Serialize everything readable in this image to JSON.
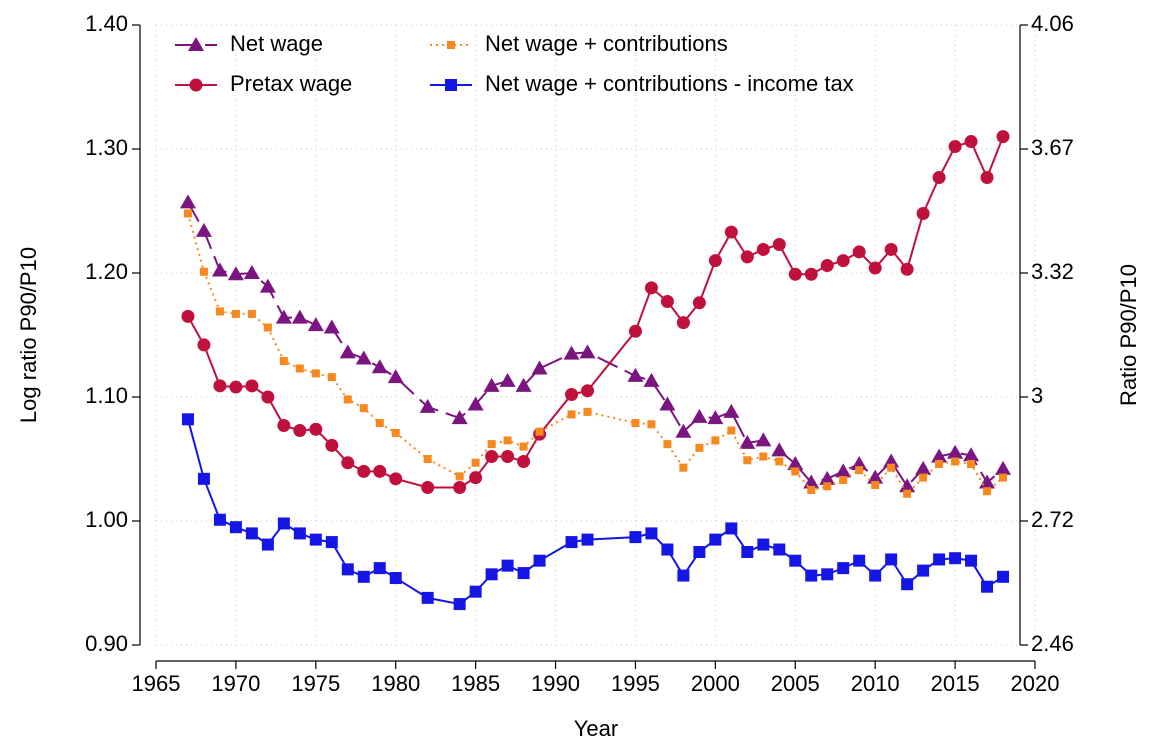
{
  "chart_data": {
    "type": "line",
    "x_label": "Year",
    "y_label": "Log ratio P90/P10",
    "y2_label": "Ratio P90/P10",
    "x": [
      1967,
      1968,
      1969,
      1970,
      1971,
      1972,
      1973,
      1974,
      1975,
      1976,
      1977,
      1978,
      1979,
      1980,
      1982,
      1984,
      1985,
      1986,
      1987,
      1988,
      1989,
      1991,
      1992,
      1995,
      1996,
      1997,
      1998,
      1999,
      2000,
      2001,
      2002,
      2003,
      2004,
      2005,
      2006,
      2007,
      2008,
      2009,
      2010,
      2011,
      2012,
      2013,
      2014,
      2015,
      2016,
      2017,
      2018
    ],
    "series": [
      {
        "name": "Net wage",
        "color": "#7b1680",
        "line_style": "dashed",
        "marker": "triangle",
        "values": [
          1.257,
          1.234,
          1.202,
          1.199,
          1.2,
          1.189,
          1.164,
          1.164,
          1.158,
          1.156,
          1.136,
          1.131,
          1.124,
          1.116,
          1.092,
          1.083,
          1.094,
          1.109,
          1.113,
          1.109,
          1.123,
          1.135,
          1.136,
          1.117,
          1.113,
          1.094,
          1.072,
          1.084,
          1.083,
          1.088,
          1.063,
          1.065,
          1.057,
          1.046,
          1.031,
          1.034,
          1.04,
          1.046,
          1.035,
          1.048,
          1.028,
          1.042,
          1.052,
          1.055,
          1.053,
          1.031,
          1.042
        ]
      },
      {
        "name": "Pretax wage",
        "color": "#c0103c",
        "line_style": "solid",
        "marker": "circle",
        "values": [
          1.165,
          1.142,
          1.109,
          1.108,
          1.109,
          1.1,
          1.077,
          1.073,
          1.074,
          1.061,
          1.047,
          1.04,
          1.04,
          1.034,
          1.027,
          1.027,
          1.035,
          1.052,
          1.052,
          1.048,
          1.07,
          1.102,
          1.105,
          1.153,
          1.188,
          1.177,
          1.16,
          1.176,
          1.21,
          1.233,
          1.213,
          1.219,
          1.223,
          1.199,
          1.199,
          1.206,
          1.21,
          1.217,
          1.204,
          1.219,
          1.203,
          1.248,
          1.277,
          1.302,
          1.306,
          1.277,
          1.31
        ]
      },
      {
        "name": "Net wage + contributions",
        "color": "#f5891f",
        "line_style": "dotted",
        "marker": "small-square",
        "values": [
          1.248,
          1.201,
          1.169,
          1.167,
          1.167,
          1.156,
          1.129,
          1.123,
          1.119,
          1.116,
          1.098,
          1.091,
          1.079,
          1.071,
          1.05,
          1.036,
          1.047,
          1.062,
          1.065,
          1.06,
          1.072,
          1.086,
          1.088,
          1.079,
          1.078,
          1.062,
          1.043,
          1.059,
          1.065,
          1.073,
          1.049,
          1.052,
          1.048,
          1.04,
          1.025,
          1.028,
          1.033,
          1.041,
          1.029,
          1.043,
          1.022,
          1.035,
          1.046,
          1.048,
          1.046,
          1.024,
          1.035
        ]
      },
      {
        "name": "Net wage + contributions - income tax",
        "color": "#1515e6",
        "line_style": "solid",
        "marker": "square",
        "values": [
          1.082,
          1.034,
          1.001,
          0.995,
          0.99,
          0.981,
          0.998,
          0.99,
          0.985,
          0.983,
          0.961,
          0.955,
          0.962,
          0.954,
          0.938,
          0.933,
          0.943,
          0.957,
          0.964,
          0.958,
          0.968,
          0.983,
          0.985,
          0.987,
          0.99,
          0.977,
          0.956,
          0.975,
          0.985,
          0.994,
          0.975,
          0.981,
          0.977,
          0.968,
          0.956,
          0.957,
          0.962,
          0.968,
          0.956,
          0.969,
          0.949,
          0.96,
          0.969,
          0.97,
          0.968,
          0.947,
          0.955
        ]
      }
    ],
    "xlim": [
      1965,
      2020
    ],
    "xticks": [
      1965,
      1970,
      1975,
      1980,
      1985,
      1990,
      1995,
      2000,
      2005,
      2010,
      2015,
      2020
    ],
    "ylim": [
      0.9,
      1.4
    ],
    "yticks": [
      {
        "value": 0.9,
        "label": "0.90"
      },
      {
        "value": 1.0,
        "label": "1.00"
      },
      {
        "value": 1.1,
        "label": "1.10"
      },
      {
        "value": 1.2,
        "label": "1.20"
      },
      {
        "value": 1.3,
        "label": "1.30"
      },
      {
        "value": 1.4,
        "label": "1.40"
      }
    ],
    "y2scale": "log",
    "y2lim": [
      2.4596,
      4.0552
    ],
    "y2ticks": [
      {
        "value": 2.4596,
        "label": "2.46"
      },
      {
        "value": 2.7183,
        "label": "2.72"
      },
      {
        "value": 3.0042,
        "label": "3"
      },
      {
        "value": 3.3201,
        "label": "3.32"
      },
      {
        "value": 3.6693,
        "label": "3.67"
      },
      {
        "value": 4.0552,
        "label": "4.06"
      }
    ],
    "grid": true,
    "legend": "top-left"
  }
}
